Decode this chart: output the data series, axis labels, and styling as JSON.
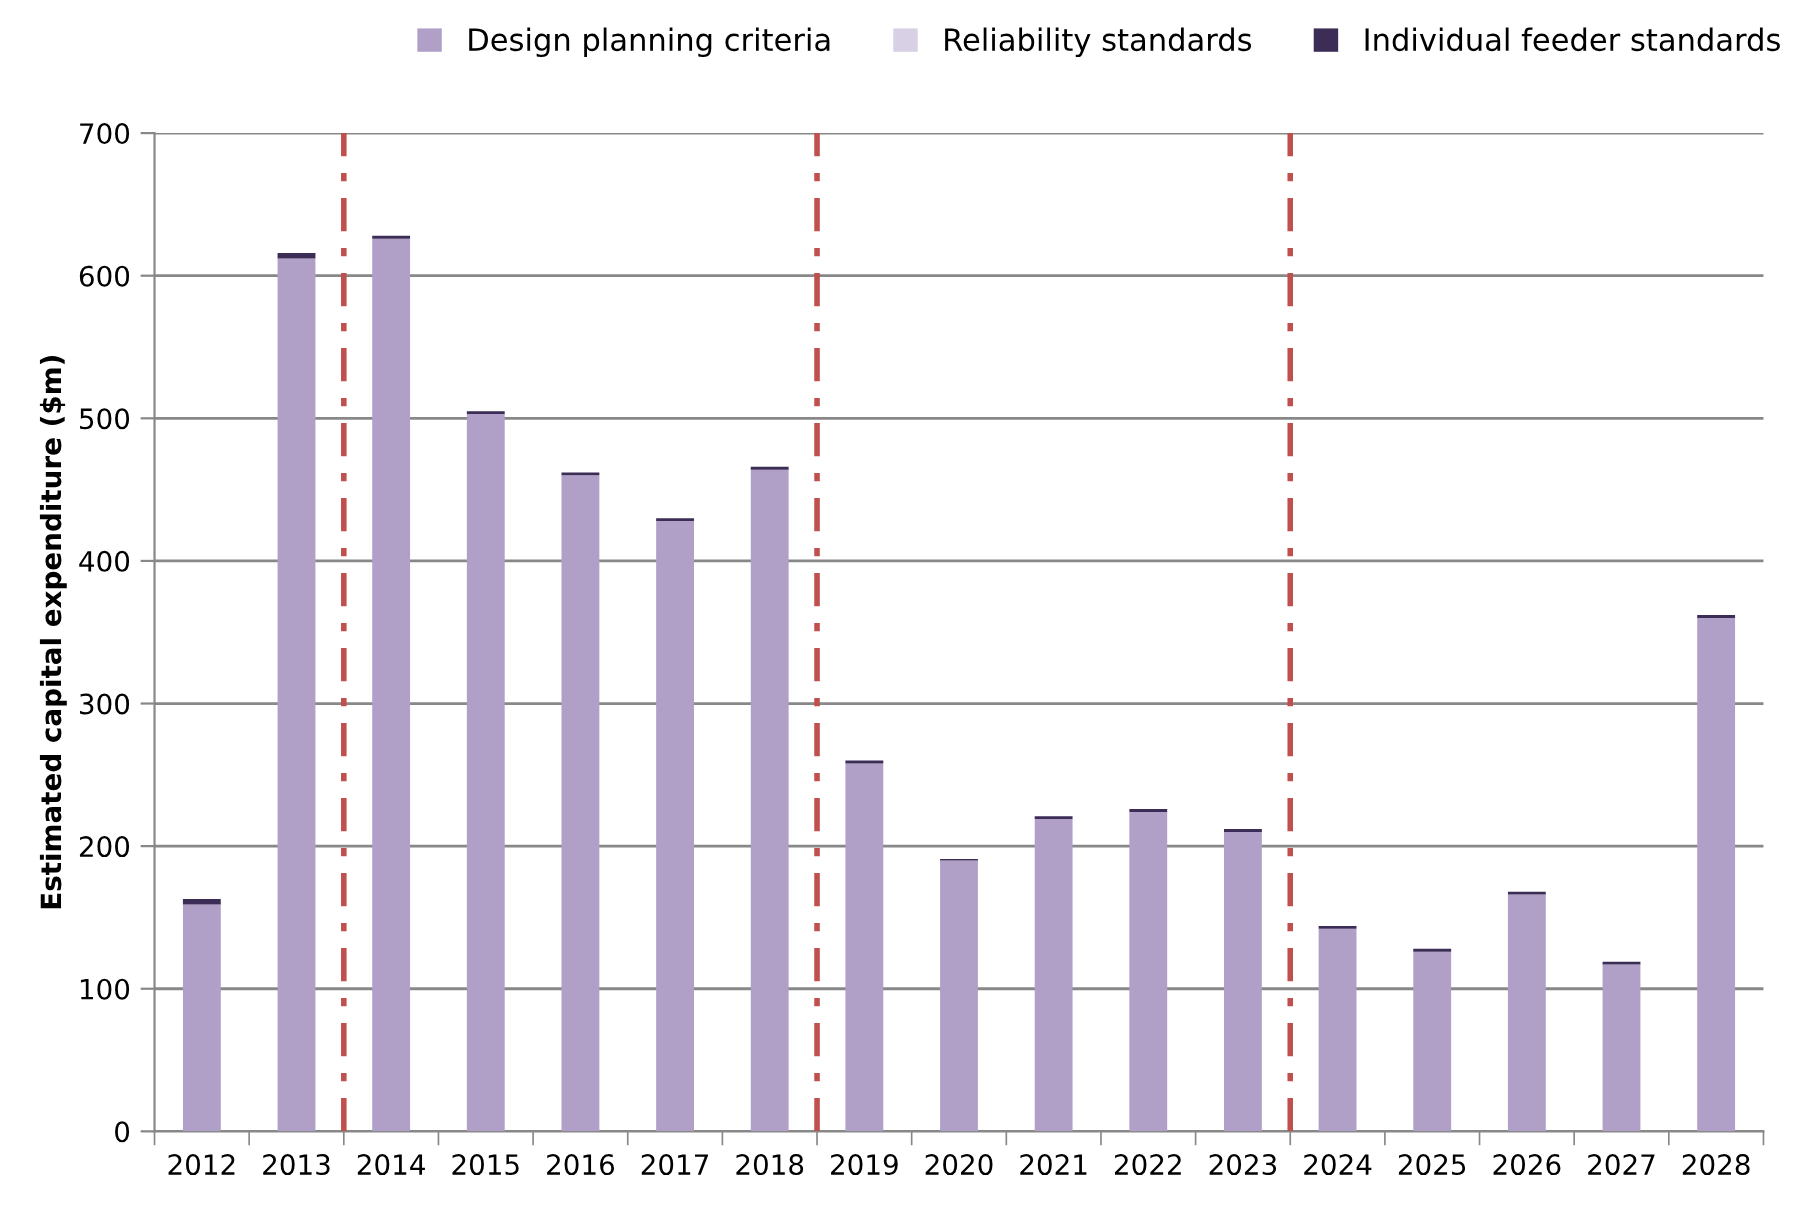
{
  "chart_data": {
    "type": "bar",
    "stacked": true,
    "ylabel": "Estimated capital expenditure ($m)",
    "categories": [
      "2012",
      "2013",
      "2014",
      "2015",
      "2016",
      "2017",
      "2018",
      "2019",
      "2020",
      "2021",
      "2022",
      "2023",
      "2024",
      "2025",
      "2026",
      "2027",
      "2028"
    ],
    "ylim": [
      0,
      700
    ],
    "yticks": [
      0,
      100,
      200,
      300,
      400,
      500,
      600,
      700
    ],
    "series": [
      {
        "name": "Design planning criteria",
        "color": "#b0a0c8",
        "values": [
          159,
          612,
          626,
          503,
          460,
          428,
          464,
          258,
          190,
          219,
          224,
          210,
          142,
          126,
          166,
          117,
          360
        ]
      },
      {
        "name": "Reliability standards",
        "color": "#d8d0e4",
        "values": [
          0,
          0,
          0,
          0,
          0,
          0,
          0,
          0,
          0,
          0,
          0,
          0,
          0,
          0,
          0,
          0,
          0
        ]
      },
      {
        "name": "Individual feeder standards",
        "color": "#3b2d55",
        "values": [
          4,
          4,
          2,
          2,
          2,
          2,
          2,
          2,
          1,
          2,
          2,
          2,
          2,
          2,
          2,
          2,
          2
        ]
      }
    ],
    "grid": "y",
    "legend": "top right"
  }
}
